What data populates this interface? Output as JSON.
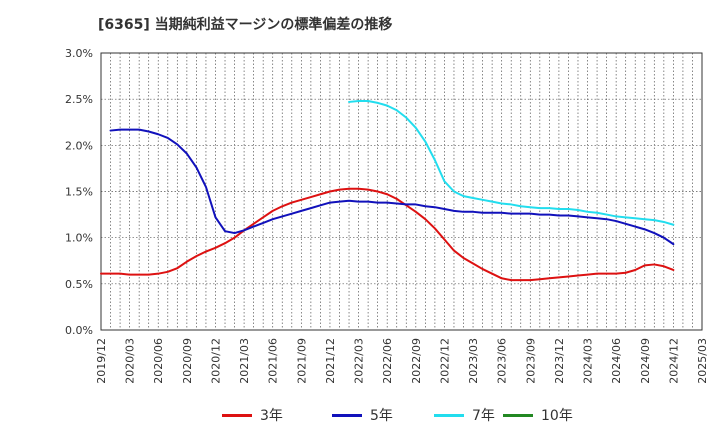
{
  "title": "[6365]  当期純利益マージンの標準偏差の推移",
  "chart_data": {
    "type": "line",
    "title": "[6365]  当期純利益マージンの標準偏差の推移",
    "xlabel": "",
    "ylabel": "",
    "x_ticks": [
      "2019/12",
      "2020/03",
      "2020/06",
      "2020/09",
      "2020/12",
      "2021/03",
      "2021/06",
      "2021/09",
      "2021/12",
      "2022/03",
      "2022/06",
      "2022/09",
      "2022/12",
      "2023/03",
      "2023/06",
      "2023/09",
      "2023/12",
      "2024/03",
      "2024/06",
      "2024/09",
      "2024/12",
      "2025/03"
    ],
    "y_ticks": [
      "0.0%",
      "0.5%",
      "1.0%",
      "1.5%",
      "2.0%",
      "2.5%",
      "3.0%"
    ],
    "ylim": [
      0,
      3.0
    ],
    "grid": true,
    "legend_position": "bottom",
    "series": [
      {
        "name": "3年",
        "color": "#dd1111",
        "points": [
          [
            "2019/12",
            0.61
          ],
          [
            "2020/01",
            0.61
          ],
          [
            "2020/02",
            0.61
          ],
          [
            "2020/03",
            0.6
          ],
          [
            "2020/04",
            0.6
          ],
          [
            "2020/05",
            0.6
          ],
          [
            "2020/06",
            0.61
          ],
          [
            "2020/07",
            0.63
          ],
          [
            "2020/08",
            0.67
          ],
          [
            "2020/09",
            0.74
          ],
          [
            "2020/10",
            0.8
          ],
          [
            "2020/11",
            0.85
          ],
          [
            "2020/12",
            0.89
          ],
          [
            "2021/01",
            0.94
          ],
          [
            "2021/02",
            1.0
          ],
          [
            "2021/03",
            1.08
          ],
          [
            "2021/04",
            1.15
          ],
          [
            "2021/05",
            1.22
          ],
          [
            "2021/06",
            1.29
          ],
          [
            "2021/07",
            1.34
          ],
          [
            "2021/08",
            1.38
          ],
          [
            "2021/09",
            1.41
          ],
          [
            "2021/10",
            1.44
          ],
          [
            "2021/11",
            1.47
          ],
          [
            "2021/12",
            1.5
          ],
          [
            "2022/01",
            1.52
          ],
          [
            "2022/02",
            1.53
          ],
          [
            "2022/03",
            1.53
          ],
          [
            "2022/04",
            1.52
          ],
          [
            "2022/05",
            1.5
          ],
          [
            "2022/06",
            1.47
          ],
          [
            "2022/07",
            1.42
          ],
          [
            "2022/08",
            1.35
          ],
          [
            "2022/09",
            1.28
          ],
          [
            "2022/10",
            1.2
          ],
          [
            "2022/11",
            1.1
          ],
          [
            "2022/12",
            0.98
          ],
          [
            "2023/01",
            0.86
          ],
          [
            "2023/02",
            0.78
          ],
          [
            "2023/03",
            0.72
          ],
          [
            "2023/04",
            0.66
          ],
          [
            "2023/05",
            0.61
          ],
          [
            "2023/06",
            0.56
          ],
          [
            "2023/07",
            0.54
          ],
          [
            "2023/08",
            0.54
          ],
          [
            "2023/09",
            0.54
          ],
          [
            "2023/10",
            0.55
          ],
          [
            "2023/11",
            0.56
          ],
          [
            "2023/12",
            0.57
          ],
          [
            "2024/01",
            0.58
          ],
          [
            "2024/02",
            0.59
          ],
          [
            "2024/03",
            0.6
          ],
          [
            "2024/04",
            0.61
          ],
          [
            "2024/05",
            0.61
          ],
          [
            "2024/06",
            0.61
          ],
          [
            "2024/07",
            0.62
          ],
          [
            "2024/08",
            0.65
          ],
          [
            "2024/09",
            0.7
          ],
          [
            "2024/10",
            0.71
          ],
          [
            "2024/11",
            0.69
          ],
          [
            "2024/12",
            0.65
          ]
        ]
      },
      {
        "name": "5年",
        "color": "#1111bb",
        "points": [
          [
            "2020/01",
            2.16
          ],
          [
            "2020/02",
            2.17
          ],
          [
            "2020/03",
            2.17
          ],
          [
            "2020/04",
            2.17
          ],
          [
            "2020/05",
            2.15
          ],
          [
            "2020/06",
            2.12
          ],
          [
            "2020/07",
            2.08
          ],
          [
            "2020/08",
            2.01
          ],
          [
            "2020/09",
            1.91
          ],
          [
            "2020/10",
            1.76
          ],
          [
            "2020/11",
            1.55
          ],
          [
            "2020/12",
            1.22
          ],
          [
            "2021/01",
            1.07
          ],
          [
            "2021/02",
            1.05
          ],
          [
            "2021/03",
            1.08
          ],
          [
            "2021/04",
            1.12
          ],
          [
            "2021/05",
            1.16
          ],
          [
            "2021/06",
            1.2
          ],
          [
            "2021/07",
            1.23
          ],
          [
            "2021/08",
            1.26
          ],
          [
            "2021/09",
            1.29
          ],
          [
            "2021/10",
            1.32
          ],
          [
            "2021/11",
            1.35
          ],
          [
            "2021/12",
            1.38
          ],
          [
            "2022/01",
            1.39
          ],
          [
            "2022/02",
            1.4
          ],
          [
            "2022/03",
            1.39
          ],
          [
            "2022/04",
            1.39
          ],
          [
            "2022/05",
            1.38
          ],
          [
            "2022/06",
            1.38
          ],
          [
            "2022/07",
            1.37
          ],
          [
            "2022/08",
            1.36
          ],
          [
            "2022/09",
            1.36
          ],
          [
            "2022/10",
            1.34
          ],
          [
            "2022/11",
            1.33
          ],
          [
            "2022/12",
            1.31
          ],
          [
            "2023/01",
            1.29
          ],
          [
            "2023/02",
            1.28
          ],
          [
            "2023/03",
            1.28
          ],
          [
            "2023/04",
            1.27
          ],
          [
            "2023/05",
            1.27
          ],
          [
            "2023/06",
            1.27
          ],
          [
            "2023/07",
            1.26
          ],
          [
            "2023/08",
            1.26
          ],
          [
            "2023/09",
            1.26
          ],
          [
            "2023/10",
            1.25
          ],
          [
            "2023/11",
            1.25
          ],
          [
            "2023/12",
            1.24
          ],
          [
            "2024/01",
            1.24
          ],
          [
            "2024/02",
            1.23
          ],
          [
            "2024/03",
            1.22
          ],
          [
            "2024/04",
            1.21
          ],
          [
            "2024/05",
            1.2
          ],
          [
            "2024/06",
            1.18
          ],
          [
            "2024/07",
            1.15
          ],
          [
            "2024/08",
            1.12
          ],
          [
            "2024/09",
            1.09
          ],
          [
            "2024/10",
            1.05
          ],
          [
            "2024/11",
            1.0
          ],
          [
            "2024/12",
            0.93
          ]
        ]
      },
      {
        "name": "7年",
        "color": "#22ddee",
        "points": [
          [
            "2022/02",
            2.47
          ],
          [
            "2022/03",
            2.48
          ],
          [
            "2022/04",
            2.48
          ],
          [
            "2022/05",
            2.46
          ],
          [
            "2022/06",
            2.43
          ],
          [
            "2022/07",
            2.38
          ],
          [
            "2022/08",
            2.3
          ],
          [
            "2022/09",
            2.19
          ],
          [
            "2022/10",
            2.04
          ],
          [
            "2022/11",
            1.84
          ],
          [
            "2022/12",
            1.61
          ],
          [
            "2023/01",
            1.5
          ],
          [
            "2023/02",
            1.45
          ],
          [
            "2023/03",
            1.43
          ],
          [
            "2023/04",
            1.41
          ],
          [
            "2023/05",
            1.39
          ],
          [
            "2023/06",
            1.37
          ],
          [
            "2023/07",
            1.36
          ],
          [
            "2023/08",
            1.34
          ],
          [
            "2023/09",
            1.33
          ],
          [
            "2023/10",
            1.32
          ],
          [
            "2023/11",
            1.32
          ],
          [
            "2023/12",
            1.31
          ],
          [
            "2024/01",
            1.31
          ],
          [
            "2024/02",
            1.3
          ],
          [
            "2024/03",
            1.28
          ],
          [
            "2024/04",
            1.27
          ],
          [
            "2024/05",
            1.25
          ],
          [
            "2024/06",
            1.23
          ],
          [
            "2024/07",
            1.22
          ],
          [
            "2024/08",
            1.21
          ],
          [
            "2024/09",
            1.2
          ],
          [
            "2024/10",
            1.19
          ],
          [
            "2024/11",
            1.17
          ],
          [
            "2024/12",
            1.14
          ]
        ]
      },
      {
        "name": "10年",
        "color": "#228822",
        "points": []
      }
    ]
  }
}
